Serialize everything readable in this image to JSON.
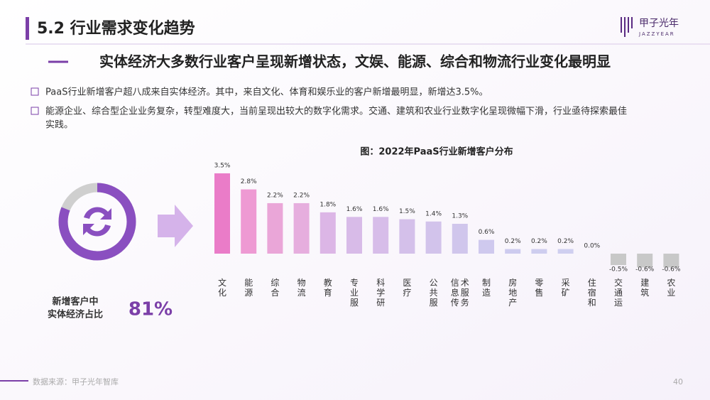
{
  "header": {
    "title": "5.2 行业需求变化趋势",
    "logo": "甲子光年",
    "logo_sub": "JAZZYEAR"
  },
  "subtitle": "实体经济大多数行业客户呈现新增状态，文娱、能源、综合和物流行业变化最明显",
  "bullets": [
    "PaaS行业新增客户超八成来自实体经济。其中，来自文化、体育和娱乐业的客户新增最明显，新增达3.5%。",
    "能源企业、综合型企业业务复杂，转型难度大，当前呈现出较大的数字化需求。交通、建筑和农业行业数字化呈现微幅下滑，行业亟待探索最佳",
    "实践。"
  ],
  "donut": {
    "caption": [
      "新增客户中",
      "实体经济占比"
    ],
    "value": 81,
    "value_label": "81%"
  },
  "footer": {
    "source": "数据来源：甲子光年智库",
    "page": "40"
  },
  "chart_data": {
    "type": "bar",
    "title": "图：2022年PaaS行业新增客户分布",
    "categories": [
      "文化",
      "能源",
      "综合",
      "物流",
      "教育",
      "专业服",
      "科学研",
      "医疗",
      "公共服",
      "信息传术服务",
      "制造",
      "房地产",
      "零售",
      "采矿",
      "住宿和",
      "交通运",
      "建筑",
      "农业"
    ],
    "values": [
      3.5,
      2.8,
      2.2,
      2.2,
      1.8,
      1.6,
      1.6,
      1.5,
      1.4,
      1.3,
      0.6,
      0.2,
      0.2,
      0.2,
      0.0,
      -0.5,
      -0.6,
      -0.6
    ],
    "value_labels": [
      "3.5%",
      "2.8%",
      "2.2%",
      "2.2%",
      "1.8%",
      "1.6%",
      "1.6%",
      "1.5%",
      "1.4%",
      "1.3%",
      "0.6%",
      "0.2%",
      "0.2%",
      "0.2%",
      "0.0%",
      "-0.5%",
      "-0.6%",
      "-0.6%"
    ],
    "colors": [
      "#ea7cc8",
      "#ee9ad3",
      "#eaa6d8",
      "#e6aede",
      "#dcb6e6",
      "#d8bbe8",
      "#d7bde9",
      "#d4c0ea",
      "#d2c3eb",
      "#d0c6ec",
      "#cfc9ee",
      "#cdcbef",
      "#cecdef",
      "#cfcff0",
      "#cccccc",
      "#c8c8c8",
      "#c8c8c8",
      "#c8c8c8"
    ]
  }
}
